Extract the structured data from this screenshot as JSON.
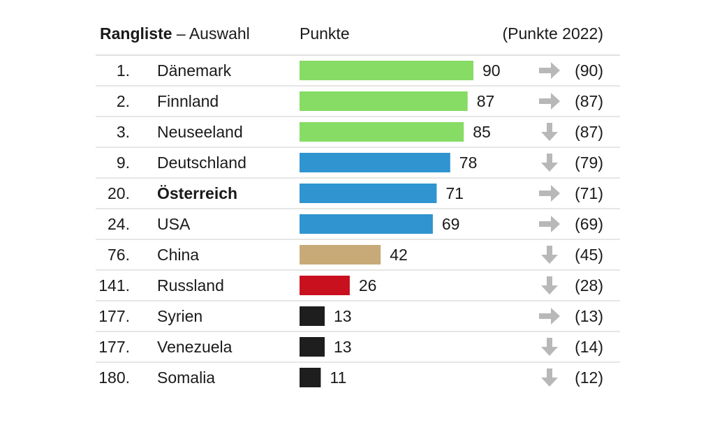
{
  "header": {
    "rank_title_bold": "Rangliste",
    "rank_title_rest": " – Auswahl",
    "points_label": "Punkte",
    "prev_label": "(Punkte 2022)"
  },
  "colors": {
    "top": "#86dc64",
    "mid": "#2f94d0",
    "china": "#c8aa78",
    "russia": "#c8101e",
    "low": "#1e1e1e",
    "arrow": "#b8b8b8",
    "divider": "#d6d6d6"
  },
  "chart_data": {
    "type": "bar",
    "orientation": "horizontal",
    "title": "Rangliste – Auswahl",
    "value_label": "Punkte",
    "prev_label": "(Punkte 2022)",
    "xlim": [
      0,
      100
    ],
    "rows": [
      {
        "rank": "1.",
        "country": "Dänemark",
        "value": 90,
        "value_label": "90",
        "trend": "same",
        "prev": "(90)",
        "color_key": "top",
        "bold": false
      },
      {
        "rank": "2.",
        "country": "Finnland",
        "value": 87,
        "value_label": "87",
        "trend": "same",
        "prev": "(87)",
        "color_key": "top",
        "bold": false
      },
      {
        "rank": "3.",
        "country": "Neuseeland",
        "value": 85,
        "value_label": "85",
        "trend": "down",
        "prev": "(87)",
        "color_key": "top",
        "bold": false
      },
      {
        "rank": "9.",
        "country": "Deutschland",
        "value": 78,
        "value_label": "78",
        "trend": "down",
        "prev": "(79)",
        "color_key": "mid",
        "bold": false
      },
      {
        "rank": "20.",
        "country": "Österreich",
        "value": 71,
        "value_label": "71",
        "trend": "same",
        "prev": "(71)",
        "color_key": "mid",
        "bold": true
      },
      {
        "rank": "24.",
        "country": "USA",
        "value": 69,
        "value_label": "69",
        "trend": "same",
        "prev": "(69)",
        "color_key": "mid",
        "bold": false
      },
      {
        "rank": "76.",
        "country": "China",
        "value": 42,
        "value_label": "42",
        "trend": "down",
        "prev": "(45)",
        "color_key": "china",
        "bold": false
      },
      {
        "rank": "141.",
        "country": "Russland",
        "value": 26,
        "value_label": "26",
        "trend": "down",
        "prev": "(28)",
        "color_key": "russia",
        "bold": false
      },
      {
        "rank": "177.",
        "country": "Syrien",
        "value": 13,
        "value_label": "13",
        "trend": "same",
        "prev": "(13)",
        "color_key": "low",
        "bold": false
      },
      {
        "rank": "177.",
        "country": "Venezuela",
        "value": 13,
        "value_label": "13",
        "trend": "down",
        "prev": "(14)",
        "color_key": "low",
        "bold": false
      },
      {
        "rank": "180.",
        "country": "Somalia",
        "value": 11,
        "value_label": "11",
        "trend": "down",
        "prev": "(12)",
        "color_key": "low",
        "bold": false
      }
    ]
  }
}
